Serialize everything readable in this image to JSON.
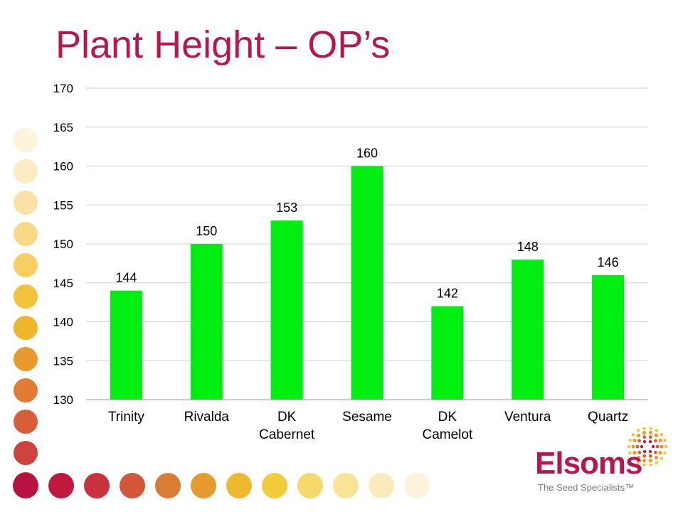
{
  "title": "Plant Height – OP’s",
  "logo": {
    "name": "Elsoms",
    "tagline": "The Seed Specialists™"
  },
  "colors": {
    "title": "#b5174f",
    "bar": "#00ee11",
    "grid": "#d0d0d0"
  },
  "chart_data": {
    "type": "bar",
    "title": "",
    "xlabel": "",
    "ylabel": "",
    "categories": [
      [
        "Trinity"
      ],
      [
        "Rivalda"
      ],
      [
        "DK",
        "Cabernet"
      ],
      [
        "Sesame"
      ],
      [
        "DK",
        "Camelot"
      ],
      [
        "Ventura"
      ],
      [
        "Quartz"
      ]
    ],
    "values": [
      144,
      150,
      153,
      160,
      142,
      148,
      146
    ],
    "data_labels": [
      "144",
      "150",
      "153",
      "160",
      "142",
      "148",
      "146"
    ],
    "ylim": [
      130,
      170
    ],
    "yticks": [
      130,
      135,
      140,
      145,
      150,
      155,
      160,
      165,
      170
    ],
    "grid": true,
    "legend": "none"
  }
}
